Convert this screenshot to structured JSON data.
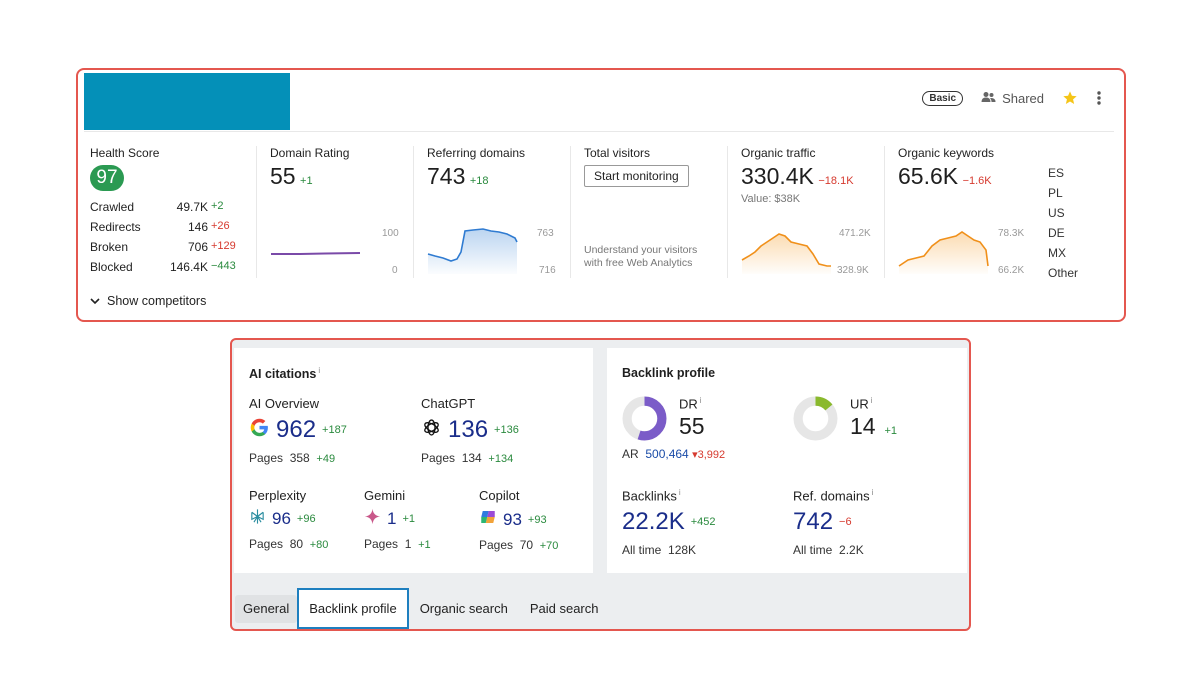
{
  "header": {
    "plan_badge": "Basic",
    "shared_label": "Shared",
    "star_color": "#f5c518",
    "accent_block_color": "#0490b8"
  },
  "metrics": {
    "health": {
      "label": "Health Score",
      "score": "97",
      "rows": [
        {
          "name": "Crawled",
          "value": "49.7K",
          "delta": "+2",
          "trend": "up"
        },
        {
          "name": "Redirects",
          "value": "146",
          "delta": "+26",
          "trend": "down"
        },
        {
          "name": "Broken",
          "value": "706",
          "delta": "+129",
          "trend": "down"
        },
        {
          "name": "Blocked",
          "value": "146.4K",
          "delta": "−443",
          "trend": "up"
        }
      ]
    },
    "domain_rating": {
      "label": "Domain Rating",
      "value": "55",
      "delta": "+1",
      "axis_top": "100",
      "axis_bottom": "0"
    },
    "referring_domains": {
      "label": "Referring domains",
      "value": "743",
      "delta": "+18",
      "axis_top": "763",
      "axis_bottom": "716"
    },
    "total_visitors": {
      "label": "Total visitors",
      "button": "Start monitoring",
      "help_line1": "Understand your visitors",
      "help_line2": "with free Web Analytics"
    },
    "organic_traffic": {
      "label": "Organic traffic",
      "value": "330.4K",
      "delta": "−18.1K",
      "sub": "Value: $38K",
      "axis_top": "471.2K",
      "axis_bottom": "328.9K"
    },
    "organic_keywords": {
      "label": "Organic keywords",
      "value": "65.6K",
      "delta": "−1.6K",
      "axis_top": "78.3K",
      "axis_bottom": "66.2K"
    },
    "countries": [
      "ES",
      "PL",
      "US",
      "DE",
      "MX",
      "Other"
    ]
  },
  "show_competitors": "Show competitors",
  "ai_citations": {
    "title": "AI citations",
    "info": "i",
    "overview": {
      "name": "AI Overview",
      "value": "962",
      "delta": "+187",
      "pages_label": "Pages",
      "pages": "358",
      "pages_delta": "+49"
    },
    "chatgpt": {
      "name": "ChatGPT",
      "value": "136",
      "delta": "+136",
      "pages_label": "Pages",
      "pages": "134",
      "pages_delta": "+134"
    },
    "perplexity": {
      "name": "Perplexity",
      "value": "96",
      "delta": "+96",
      "pages_label": "Pages",
      "pages": "80",
      "pages_delta": "+80"
    },
    "gemini": {
      "name": "Gemini",
      "value": "1",
      "delta": "+1",
      "pages_label": "Pages",
      "pages": "1",
      "pages_delta": "+1"
    },
    "copilot": {
      "name": "Copilot",
      "value": "93",
      "delta": "+93",
      "pages_label": "Pages",
      "pages": "70",
      "pages_delta": "+70"
    }
  },
  "backlink_profile": {
    "title": "Backlink profile",
    "dr": {
      "name": "DR",
      "value": "55",
      "fill_fraction": 0.55,
      "color": "#7b5cc8"
    },
    "ar": {
      "label": "AR",
      "value": "500,464",
      "delta": "3,992"
    },
    "ur": {
      "name": "UR",
      "value": "14",
      "delta": "+1",
      "fill_fraction": 0.14,
      "color": "#8ab92d"
    },
    "backlinks": {
      "name": "Backlinks",
      "value": "22.2K",
      "delta": "+452",
      "sub_label": "All time",
      "sub_value": "128K"
    },
    "ref_domains": {
      "name": "Ref. domains",
      "value": "742",
      "delta": "−6",
      "sub_label": "All time",
      "sub_value": "2.2K"
    }
  },
  "tabs": [
    "General",
    "Backlink profile",
    "Organic search",
    "Paid search"
  ]
}
